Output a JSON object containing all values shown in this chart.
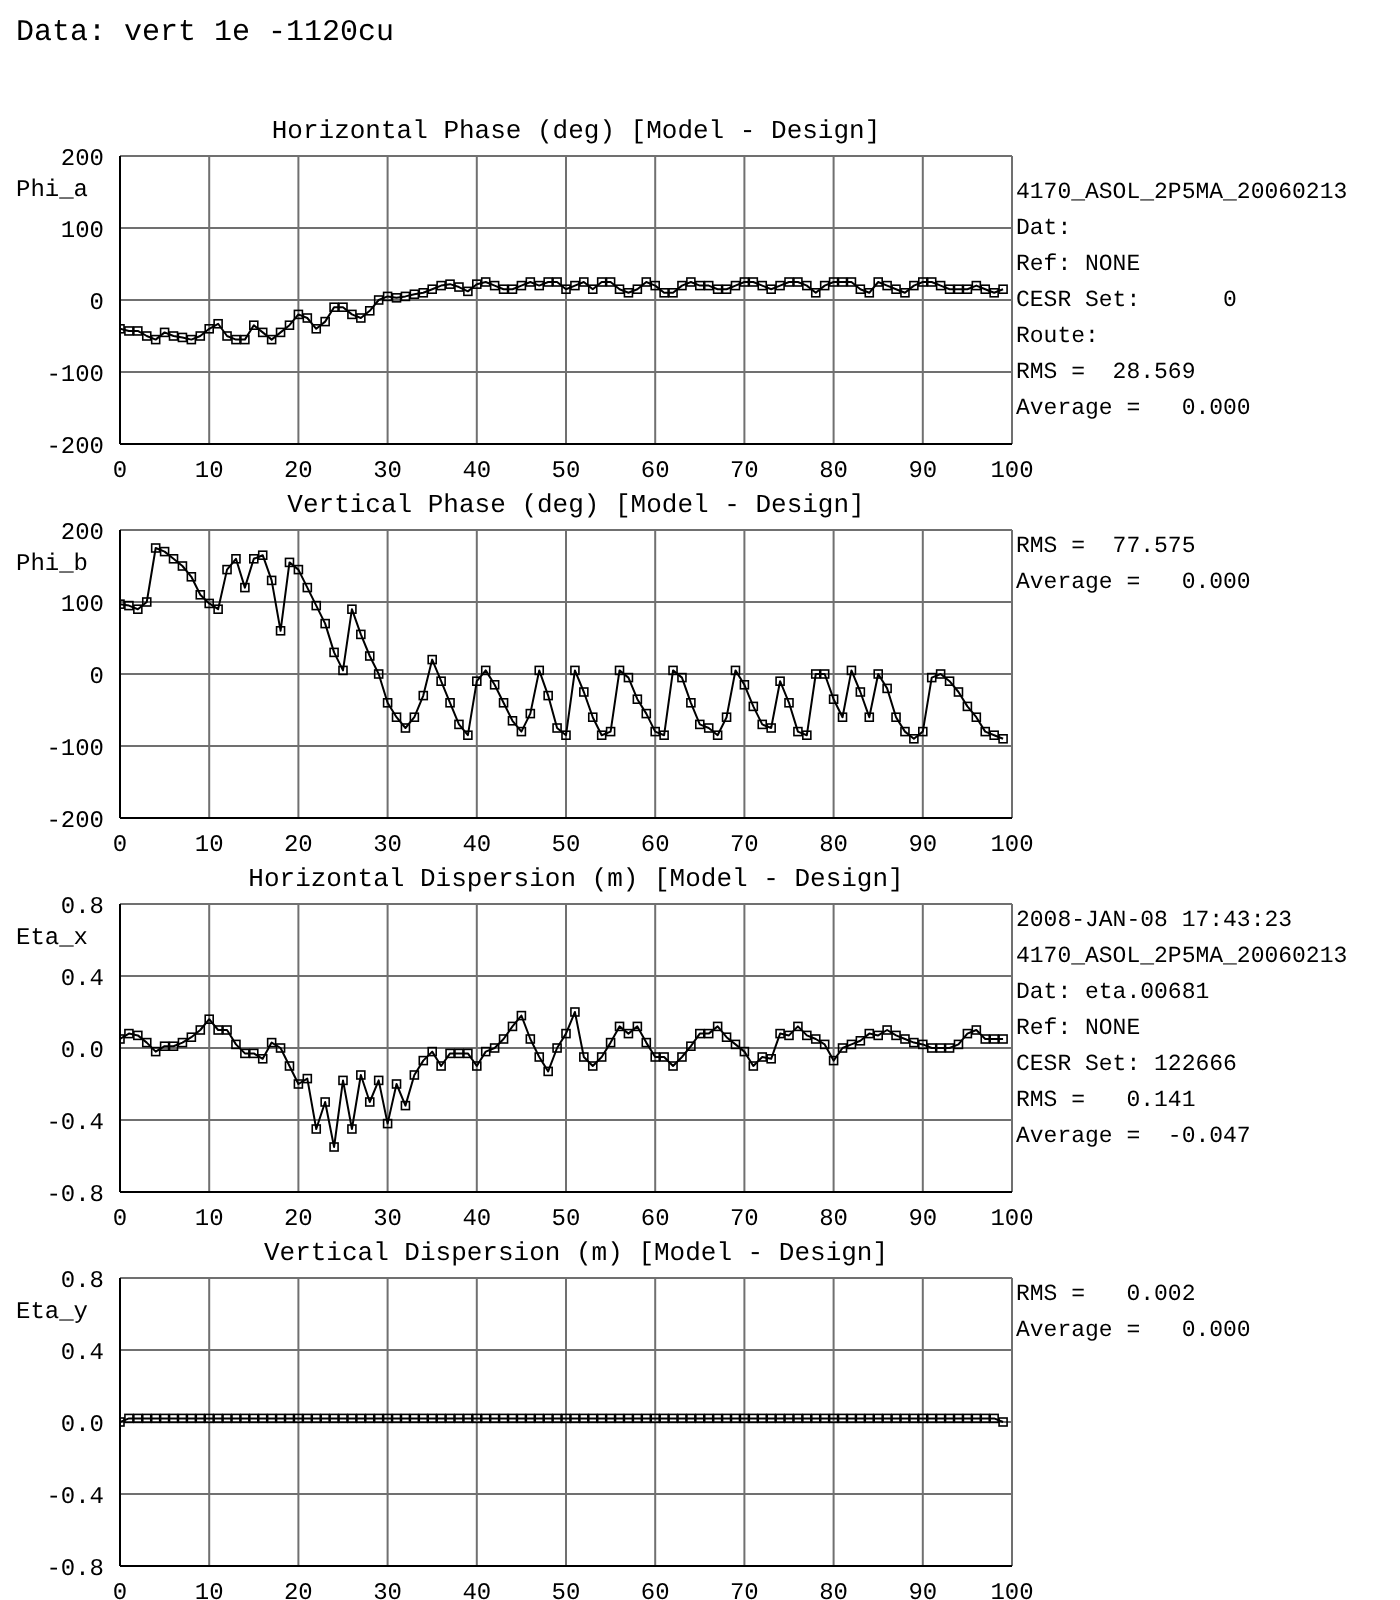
{
  "chart_data": [
    {
      "type": "line",
      "title": "Horizontal Phase (deg) [Model - Design]",
      "ylabel": "Phi_a",
      "x": [
        0,
        1,
        2,
        3,
        4,
        5,
        6,
        7,
        8,
        9,
        10,
        11,
        12,
        13,
        14,
        15,
        16,
        17,
        18,
        19,
        20,
        21,
        22,
        23,
        24,
        25,
        26,
        27,
        28,
        29,
        30,
        31,
        32,
        33,
        34,
        35,
        36,
        37,
        38,
        39,
        40,
        41,
        42,
        43,
        44,
        45,
        46,
        47,
        48,
        49,
        50,
        51,
        52,
        53,
        54,
        55,
        56,
        57,
        58,
        59,
        60,
        61,
        62,
        63,
        64,
        65,
        66,
        67,
        68,
        69,
        70,
        71,
        72,
        73,
        74,
        75,
        76,
        77,
        78,
        79,
        80,
        81,
        82,
        83,
        84,
        85,
        86,
        87,
        88,
        89,
        90,
        91,
        92,
        93,
        94,
        95,
        96,
        97,
        98,
        99
      ],
      "series": [
        {
          "color": "#000000",
          "values": [
            -40,
            -43,
            -43,
            -50,
            -55,
            -45,
            -50,
            -52,
            -55,
            -50,
            -40,
            -33,
            -50,
            -55,
            -55,
            -35,
            -45,
            -55,
            -45,
            -35,
            -20,
            -25,
            -40,
            -30,
            -10,
            -10,
            -20,
            -25,
            -15,
            0,
            5,
            3,
            5,
            8,
            10,
            15,
            20,
            22,
            18,
            12,
            22,
            25,
            20,
            15,
            15,
            20,
            25,
            20,
            25,
            25,
            15,
            20,
            25,
            15,
            25,
            25,
            15,
            10,
            15,
            25,
            20,
            10,
            10,
            20,
            25,
            20,
            20,
            15,
            15,
            20,
            25,
            25,
            20,
            15,
            20,
            25,
            25,
            20,
            10,
            20,
            25,
            25,
            25,
            15,
            10,
            25,
            20,
            15,
            10,
            20,
            25,
            25,
            20,
            15,
            15,
            15,
            20,
            15,
            10,
            15
          ]
        }
      ],
      "xlim": [
        0,
        100
      ],
      "xticks": [
        0,
        10,
        20,
        30,
        40,
        50,
        60,
        70,
        80,
        90,
        100
      ],
      "ylim": [
        -200,
        200
      ],
      "yticks": [
        -200,
        -100,
        0,
        100,
        200
      ],
      "grid": true,
      "marker": "square",
      "line_style": "solid",
      "annotations": [
        "Data: vert 1e -1120cu",
        "4170_ASOL_2P5MA_20060213",
        "Dat:",
        "Ref: NONE",
        "CESR Set:      0",
        "Route:",
        "RMS =  28.569",
        "Average =   0.000"
      ]
    },
    {
      "type": "line",
      "title": "Vertical Phase (deg) [Model - Design]",
      "ylabel": "Phi_b",
      "x": [
        0,
        1,
        2,
        3,
        4,
        5,
        6,
        7,
        8,
        9,
        10,
        11,
        12,
        13,
        14,
        15,
        16,
        17,
        18,
        19,
        20,
        21,
        22,
        23,
        24,
        25,
        26,
        27,
        28,
        29,
        30,
        31,
        32,
        33,
        34,
        35,
        36,
        37,
        38,
        39,
        40,
        41,
        42,
        43,
        44,
        45,
        46,
        47,
        48,
        49,
        50,
        51,
        52,
        53,
        54,
        55,
        56,
        57,
        58,
        59,
        60,
        61,
        62,
        63,
        64,
        65,
        66,
        67,
        68,
        69,
        70,
        71,
        72,
        73,
        74,
        75,
        76,
        77,
        78,
        79,
        80,
        81,
        82,
        83,
        84,
        85,
        86,
        87,
        88,
        89,
        90,
        91,
        92,
        93,
        94,
        95,
        96,
        97,
        98,
        99
      ],
      "series": [
        {
          "color": "#000000",
          "values": [
            97,
            95,
            90,
            100,
            175,
            170,
            160,
            150,
            135,
            110,
            98,
            90,
            145,
            160,
            120,
            160,
            165,
            130,
            60,
            155,
            145,
            120,
            95,
            70,
            30,
            5,
            90,
            55,
            25,
            0,
            -40,
            -60,
            -75,
            -60,
            -30,
            20,
            -10,
            -40,
            -70,
            -85,
            -10,
            5,
            -15,
            -40,
            -65,
            -80,
            -55,
            5,
            -30,
            -75,
            -85,
            5,
            -25,
            -60,
            -85,
            -80,
            5,
            -5,
            -35,
            -55,
            -80,
            -85,
            5,
            -5,
            -40,
            -70,
            -75,
            -85,
            -60,
            5,
            -15,
            -45,
            -70,
            -75,
            -10,
            -40,
            -80,
            -85,
            0,
            0,
            -35,
            -60,
            5,
            -25,
            -60,
            0,
            -20,
            -60,
            -80,
            -90,
            -80,
            -5,
            0,
            -10,
            -25,
            -45,
            -60,
            -80,
            -85,
            -90
          ]
        }
      ],
      "xlim": [
        0,
        100
      ],
      "xticks": [
        0,
        10,
        20,
        30,
        40,
        50,
        60,
        70,
        80,
        90,
        100
      ],
      "ylim": [
        -200,
        200
      ],
      "yticks": [
        -200,
        -100,
        0,
        100,
        200
      ],
      "grid": true,
      "marker": "square",
      "line_style": "solid",
      "annotations": [
        "RMS =  77.575",
        "Average =   0.000"
      ]
    },
    {
      "type": "line",
      "title": "Horizontal Dispersion (m) [Model - Design]",
      "ylabel": "Eta_x",
      "x": [
        0,
        1,
        2,
        3,
        4,
        5,
        6,
        7,
        8,
        9,
        10,
        11,
        12,
        13,
        14,
        15,
        16,
        17,
        18,
        19,
        20,
        21,
        22,
        23,
        24,
        25,
        26,
        27,
        28,
        29,
        30,
        31,
        32,
        33,
        34,
        35,
        36,
        37,
        38,
        39,
        40,
        41,
        42,
        43,
        44,
        45,
        46,
        47,
        48,
        49,
        50,
        51,
        52,
        53,
        54,
        55,
        56,
        57,
        58,
        59,
        60,
        61,
        62,
        63,
        64,
        65,
        66,
        67,
        68,
        69,
        70,
        71,
        72,
        73,
        74,
        75,
        76,
        77,
        78,
        79,
        80,
        81,
        82,
        83,
        84,
        85,
        86,
        87,
        88,
        89,
        90,
        91,
        92,
        93,
        94,
        95,
        96,
        97,
        98,
        99
      ],
      "series": [
        {
          "color": "#000000",
          "values": [
            0.05,
            0.08,
            0.07,
            0.03,
            -0.02,
            0.01,
            0.01,
            0.03,
            0.06,
            0.1,
            0.16,
            0.1,
            0.1,
            0.02,
            -0.03,
            -0.03,
            -0.06,
            0.03,
            0,
            -0.1,
            -0.2,
            -0.17,
            -0.45,
            -0.3,
            -0.55,
            -0.18,
            -0.45,
            -0.15,
            -0.3,
            -0.18,
            -0.42,
            -0.2,
            -0.32,
            -0.15,
            -0.07,
            -0.02,
            -0.1,
            -0.03,
            -0.03,
            -0.03,
            -0.1,
            -0.02,
            0,
            0.05,
            0.12,
            0.18,
            0.05,
            -0.05,
            -0.13,
            0,
            0.08,
            0.2,
            -0.05,
            -0.1,
            -0.05,
            0.03,
            0.12,
            0.08,
            0.12,
            0.03,
            -0.05,
            -0.05,
            -0.1,
            -0.05,
            0.01,
            0.08,
            0.08,
            0.12,
            0.06,
            0.02,
            -0.02,
            -0.1,
            -0.05,
            -0.06,
            0.08,
            0.07,
            0.12,
            0.07,
            0.05,
            0.02,
            -0.07,
            0,
            0.02,
            0.04,
            0.08,
            0.07,
            0.1,
            0.07,
            0.05,
            0.03,
            0.02,
            0,
            0,
            0,
            0.02,
            0.08,
            0.1,
            0.05,
            0.05,
            0.05
          ]
        }
      ],
      "xlim": [
        0,
        100
      ],
      "xticks": [
        0,
        10,
        20,
        30,
        40,
        50,
        60,
        70,
        80,
        90,
        100
      ],
      "ylim": [
        -0.8,
        0.8
      ],
      "yticks": [
        -0.8,
        -0.4,
        {
          "value": 0,
          "label": "0.0"
        },
        0.4,
        0.8
      ],
      "grid": true,
      "marker": "square",
      "line_style": "solid",
      "annotations": [
        "2008-JAN-08 17:43:23",
        "4170_ASOL_2P5MA_20060213",
        "Dat: eta.00681",
        "Ref: NONE",
        "CESR Set: 122666",
        "RMS =   0.141",
        "Average =  -0.047"
      ]
    },
    {
      "type": "line",
      "title": "Vertical Dispersion (m) [Model - Design]",
      "ylabel": "Eta_y",
      "x": [
        0,
        1,
        2,
        3,
        4,
        5,
        6,
        7,
        8,
        9,
        10,
        11,
        12,
        13,
        14,
        15,
        16,
        17,
        18,
        19,
        20,
        21,
        22,
        23,
        24,
        25,
        26,
        27,
        28,
        29,
        30,
        31,
        32,
        33,
        34,
        35,
        36,
        37,
        38,
        39,
        40,
        41,
        42,
        43,
        44,
        45,
        46,
        47,
        48,
        49,
        50,
        51,
        52,
        53,
        54,
        55,
        56,
        57,
        58,
        59,
        60,
        61,
        62,
        63,
        64,
        65,
        66,
        67,
        68,
        69,
        70,
        71,
        72,
        73,
        74,
        75,
        76,
        77,
        78,
        79,
        80,
        81,
        82,
        83,
        84,
        85,
        86,
        87,
        88,
        89,
        90,
        91,
        92,
        93,
        94,
        95,
        96,
        97,
        98,
        99
      ],
      "series": [
        {
          "color": "#000000",
          "values": [
            0,
            0.02,
            0.02,
            0.02,
            0.02,
            0.02,
            0.02,
            0.02,
            0.02,
            0.02,
            0.02,
            0.02,
            0.02,
            0.02,
            0.02,
            0.02,
            0.02,
            0.02,
            0.02,
            0.02,
            0.02,
            0.02,
            0.02,
            0.02,
            0.02,
            0.02,
            0.02,
            0.02,
            0.02,
            0.02,
            0.02,
            0.02,
            0.02,
            0.02,
            0.02,
            0.02,
            0.02,
            0.02,
            0.02,
            0.02,
            0.02,
            0.02,
            0.02,
            0.02,
            0.02,
            0.02,
            0.02,
            0.02,
            0.02,
            0.02,
            0.02,
            0.02,
            0.02,
            0.02,
            0.02,
            0.02,
            0.02,
            0.02,
            0.02,
            0.02,
            0.02,
            0.02,
            0.02,
            0.02,
            0.02,
            0.02,
            0.02,
            0.02,
            0.02,
            0.02,
            0.02,
            0.02,
            0.02,
            0.02,
            0.02,
            0.02,
            0.02,
            0.02,
            0.02,
            0.02,
            0.02,
            0.02,
            0.02,
            0.02,
            0.02,
            0.02,
            0.02,
            0.02,
            0.02,
            0.02,
            0.02,
            0.02,
            0.02,
            0.02,
            0.02,
            0.02,
            0.02,
            0.02,
            0.02,
            0
          ]
        }
      ],
      "xlim": [
        0,
        100
      ],
      "xticks": [
        0,
        10,
        20,
        30,
        40,
        50,
        60,
        70,
        80,
        90,
        100
      ],
      "ylim": [
        -0.8,
        0.8
      ],
      "yticks": [
        -0.8,
        -0.4,
        {
          "value": 0,
          "label": "0.0"
        },
        0.4,
        0.8
      ],
      "grid": true,
      "marker": "square",
      "line_style": "solid",
      "annotations": [
        "RMS =   0.002",
        "Average =   0.000"
      ]
    }
  ]
}
